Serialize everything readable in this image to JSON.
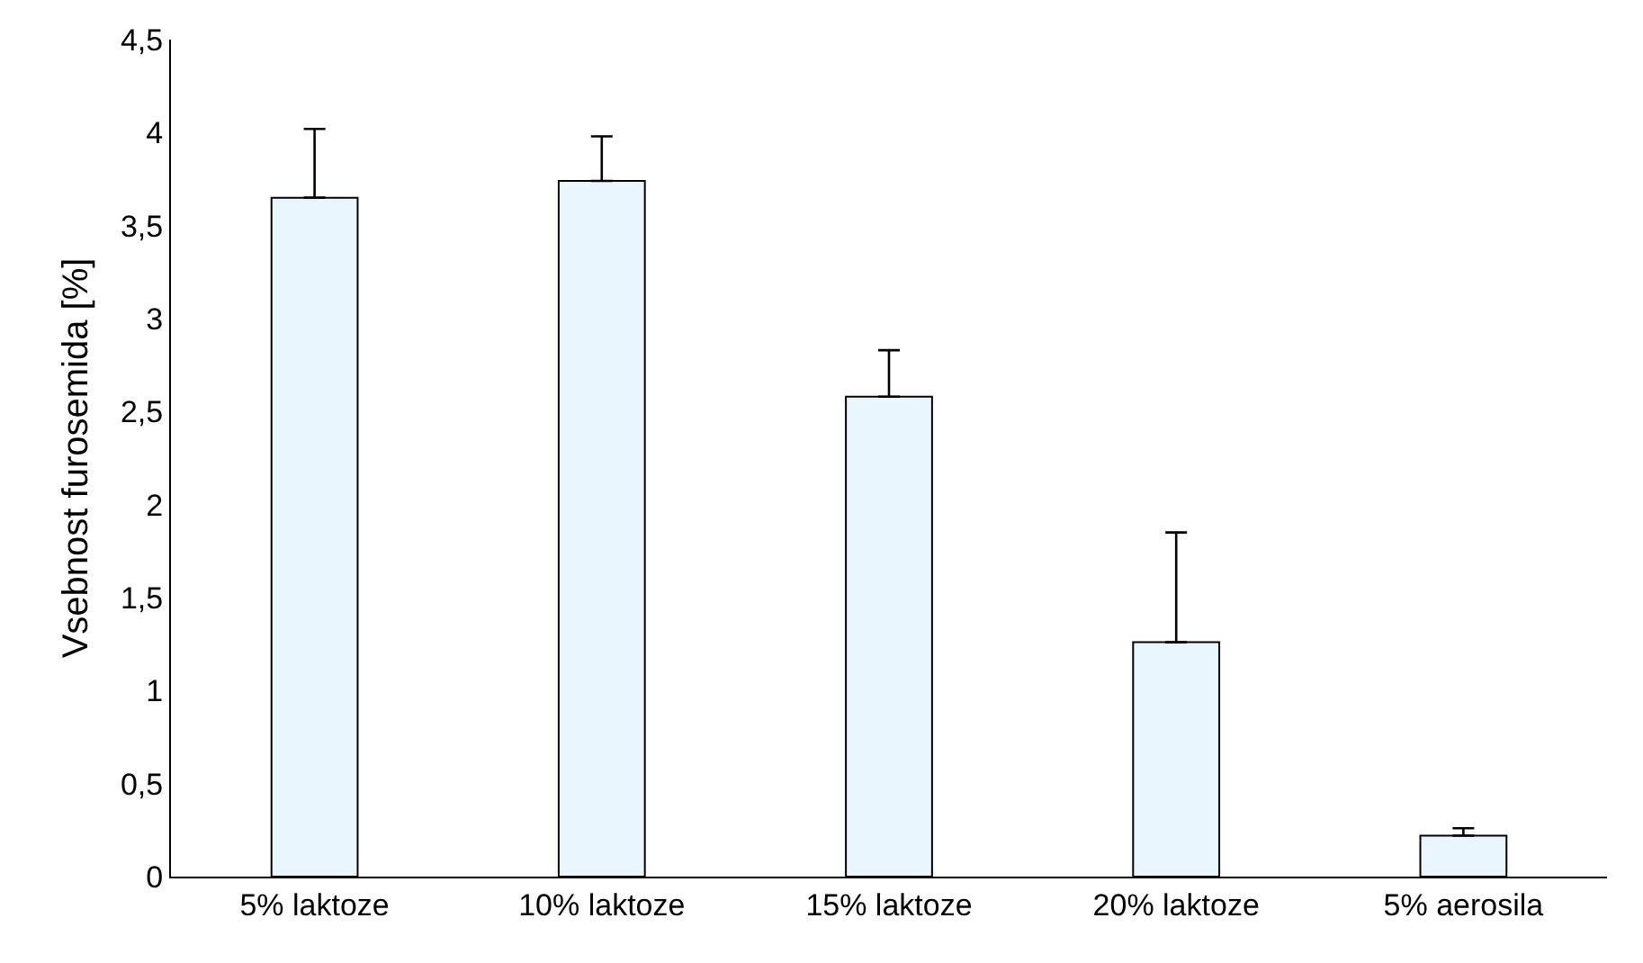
{
  "chart_data": {
    "type": "bar",
    "ylabel": "Vsebnost furosemida [%]",
    "categories": [
      "5% laktoze",
      "10% laktoze",
      "15% laktoze",
      "20% laktoze",
      "5% aerosila"
    ],
    "values": [
      3.65,
      3.74,
      2.58,
      1.26,
      0.22
    ],
    "errors": [
      [
        3.65,
        4.02
      ],
      [
        3.74,
        3.98
      ],
      [
        2.58,
        2.83
      ],
      [
        1.26,
        1.85
      ],
      [
        0.22,
        0.26
      ]
    ],
    "color": "#eaf6fd",
    "ylim": [
      0,
      4.5
    ],
    "yticks": [
      0,
      {
        "value": 0.5,
        "label": "0,5"
      },
      1,
      {
        "value": 1.5,
        "label": "1,5"
      },
      2,
      {
        "value": 2.5,
        "label": "2,5"
      },
      3,
      {
        "value": 3.5,
        "label": "3,5"
      },
      4,
      {
        "value": 4.5,
        "label": "4,5"
      }
    ],
    "grid": false
  }
}
